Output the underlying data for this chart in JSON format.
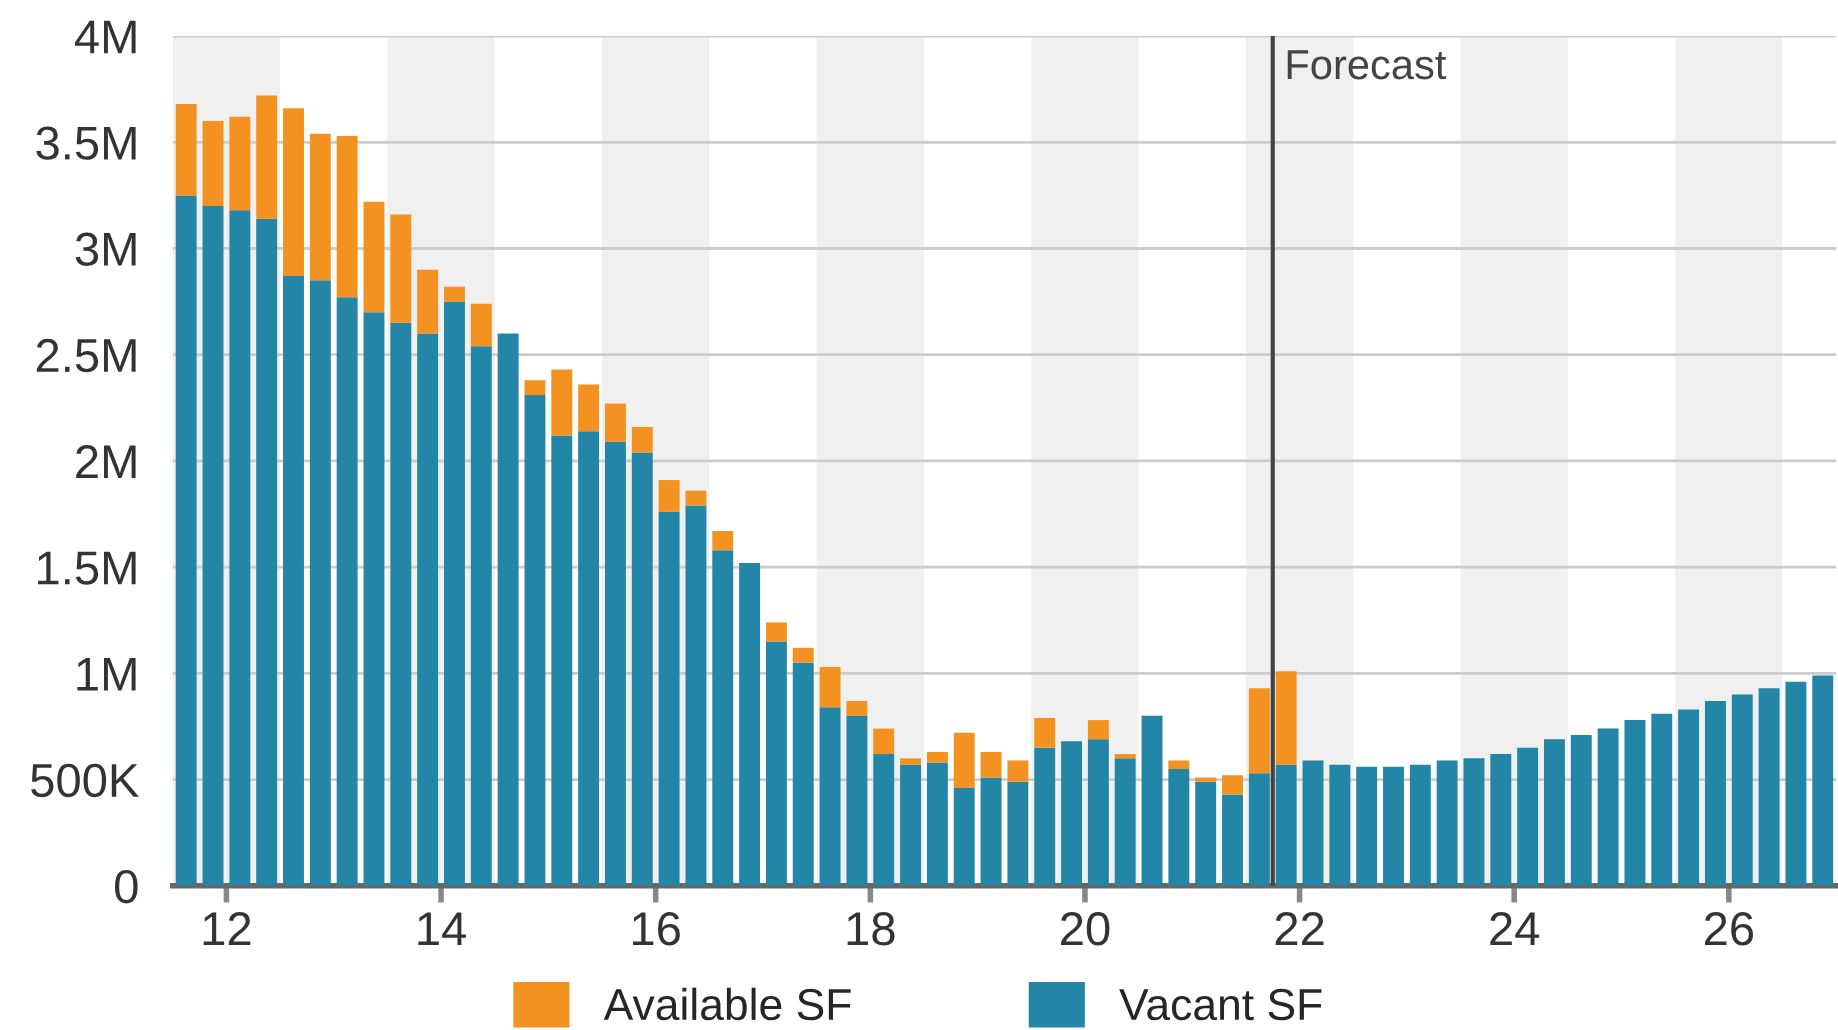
{
  "chart_data": {
    "type": "bar",
    "stacked": true,
    "x": [
      11.625,
      11.875,
      12.125,
      12.375,
      12.625,
      12.875,
      13.125,
      13.375,
      13.625,
      13.875,
      14.125,
      14.375,
      14.625,
      14.875,
      15.125,
      15.375,
      15.625,
      15.875,
      16.125,
      16.375,
      16.625,
      16.875,
      17.125,
      17.375,
      17.625,
      17.875,
      18.125,
      18.375,
      18.625,
      18.875,
      19.125,
      19.375,
      19.625,
      19.875,
      20.125,
      20.375,
      20.625,
      20.875,
      21.125,
      21.375,
      21.625,
      21.875,
      22.125,
      22.375,
      22.625,
      22.875,
      23.125,
      23.375,
      23.625,
      23.875,
      24.125,
      24.375,
      24.625,
      24.875,
      25.125,
      25.375,
      25.625,
      25.875,
      26.125,
      26.375,
      26.625,
      26.875
    ],
    "series": [
      {
        "name": "Vacant SF",
        "color": "#2386a6",
        "values": [
          3250000,
          3200000,
          3180000,
          3140000,
          2870000,
          2850000,
          2770000,
          2700000,
          2650000,
          2600000,
          2750000,
          2540000,
          2600000,
          2310000,
          2120000,
          2140000,
          2090000,
          2040000,
          1760000,
          1790000,
          1580000,
          1520000,
          1150000,
          1050000,
          840000,
          800000,
          620000,
          570000,
          580000,
          460000,
          510000,
          490000,
          650000,
          680000,
          690000,
          600000,
          800000,
          550000,
          490000,
          430000,
          530000,
          570000,
          590000,
          570000,
          560000,
          560000,
          570000,
          590000,
          600000,
          620000,
          650000,
          690000,
          710000,
          740000,
          780000,
          810000,
          830000,
          870000,
          900000,
          930000,
          960000,
          990000
        ]
      },
      {
        "name": "Available SF",
        "color": "#f39221",
        "values": [
          430000,
          400000,
          440000,
          580000,
          790000,
          690000,
          760000,
          520000,
          510000,
          300000,
          70000,
          200000,
          null,
          70000,
          310000,
          220000,
          180000,
          120000,
          150000,
          70000,
          90000,
          null,
          90000,
          70000,
          190000,
          70000,
          120000,
          30000,
          50000,
          260000,
          120000,
          100000,
          140000,
          null,
          90000,
          20000,
          null,
          40000,
          20000,
          90000,
          400000,
          440000,
          null,
          null,
          null,
          null,
          null,
          null,
          null,
          null,
          null,
          null,
          null,
          null,
          null,
          null,
          null,
          null,
          null,
          null,
          null,
          null
        ]
      }
    ],
    "xlim": [
      11.5,
      27.0
    ],
    "xticks": [
      12,
      14,
      16,
      18,
      20,
      22,
      24,
      26
    ],
    "ylim": [
      0,
      4000000
    ],
    "yticks": [
      {
        "value": 0,
        "label": "0"
      },
      {
        "value": 500000,
        "label": "500K"
      },
      {
        "value": 1000000,
        "label": "1M"
      },
      {
        "value": 1500000,
        "label": "1.5M"
      },
      {
        "value": 2000000,
        "label": "2M"
      },
      {
        "value": 2500000,
        "label": "2.5M"
      },
      {
        "value": 3000000,
        "label": "3M"
      },
      {
        "value": 3500000,
        "label": "3.5M"
      },
      {
        "value": 4000000,
        "label": "4M"
      }
    ],
    "grid": "y",
    "legend": "bottom",
    "ref_lines": [
      {
        "axis": "x",
        "value": 21.75,
        "label": "Forecast",
        "color": "#444444"
      }
    ],
    "bands": [
      {
        "axis": "x",
        "from": 11.5,
        "to": 12.5,
        "color": "#f0f0f0"
      },
      {
        "axis": "x",
        "from": 13.5,
        "to": 14.5,
        "color": "#f0f0f0"
      },
      {
        "axis": "x",
        "from": 15.5,
        "to": 16.5,
        "color": "#f0f0f0"
      },
      {
        "axis": "x",
        "from": 17.5,
        "to": 18.5,
        "color": "#f0f0f0"
      },
      {
        "axis": "x",
        "from": 19.5,
        "to": 20.5,
        "color": "#f0f0f0"
      },
      {
        "axis": "x",
        "from": 21.5,
        "to": 22.5,
        "color": "#f0f0f0"
      },
      {
        "axis": "x",
        "from": 23.5,
        "to": 24.5,
        "color": "#f0f0f0"
      },
      {
        "axis": "x",
        "from": 25.5,
        "to": 26.5,
        "color": "#f0f0f0"
      }
    ]
  }
}
